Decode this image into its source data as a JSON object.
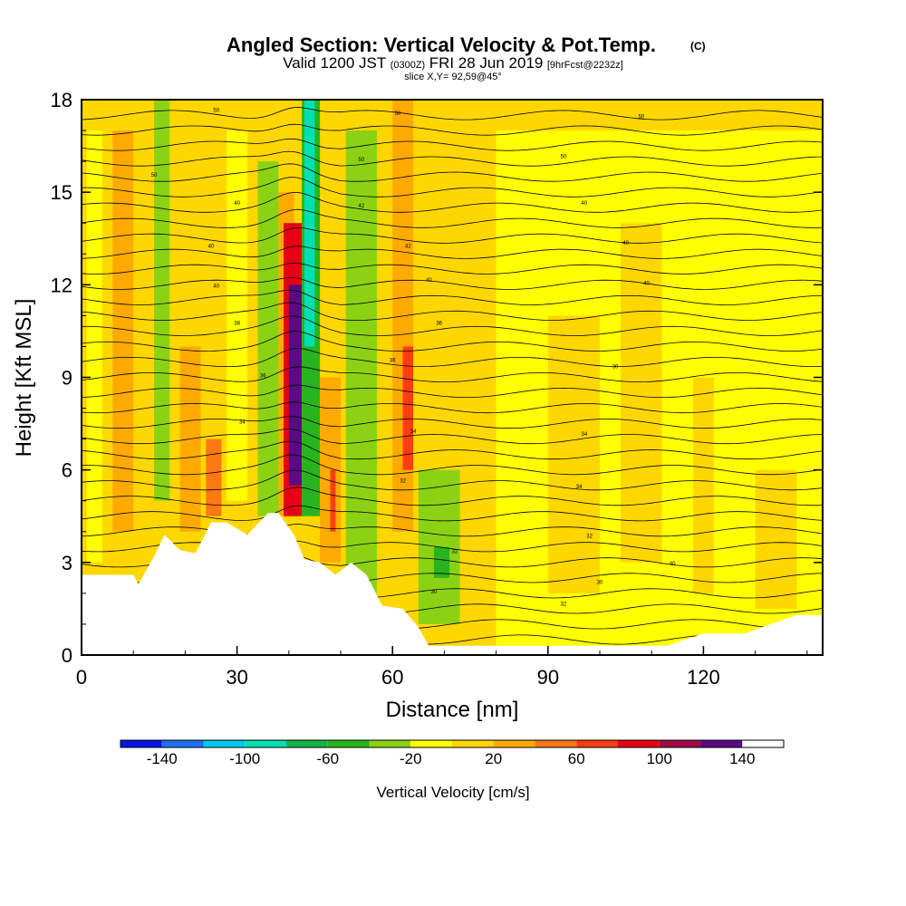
{
  "chart_data": {
    "type": "heatmap",
    "title": "Angled Section: Vertical Velocity & Pot.Temp.",
    "title_units": "(C)",
    "subtitle_valid": "Valid 1200 JST",
    "subtitle_utc": "(0300Z)",
    "subtitle_date": "FRI 28 Jun 2019",
    "subtitle_fcst": "[9hrFcst@2232z]",
    "slice_label": "slice X,Y= 92,59@45°",
    "xlabel": "Distance [nm]",
    "ylabel": "Height [Kft MSL]",
    "xlim": [
      0,
      143
    ],
    "ylim": [
      0,
      18
    ],
    "x_ticks": [
      "0",
      "30",
      "60",
      "90",
      "120"
    ],
    "y_ticks": [
      "0",
      "3",
      "6",
      "9",
      "12",
      "15",
      "18"
    ],
    "x_tick_values": [
      0,
      30,
      60,
      90,
      120
    ],
    "y_tick_values": [
      0,
      3,
      6,
      9,
      12,
      15,
      18
    ],
    "colorbar": {
      "label": "Vertical Velocity [cm/s]",
      "boundaries": [
        -160,
        -140,
        -120,
        -100,
        -80,
        -60,
        -40,
        -20,
        0,
        20,
        40,
        60,
        80,
        100,
        120,
        140,
        160
      ],
      "colors": [
        "#0a14e6",
        "#1e6ef0",
        "#00c8f0",
        "#00e0b4",
        "#14b446",
        "#28b41e",
        "#8cd214",
        "#ffff00",
        "#ffd700",
        "#ffaa00",
        "#ff7814",
        "#ff3c14",
        "#e60014",
        "#a00a46",
        "#5a0a82"
      ],
      "tick_labels": [
        "-140",
        "-100",
        "-60",
        "-20",
        "20",
        "60",
        "100",
        "140"
      ],
      "tick_values": [
        -140,
        -100,
        -60,
        -20,
        20,
        60,
        100,
        140
      ]
    },
    "terrain_kft": {
      "x": [
        0,
        10,
        11,
        14,
        16,
        19,
        22,
        25,
        28,
        32,
        36,
        38,
        41,
        43,
        46,
        49,
        52,
        55,
        58,
        62,
        65,
        67,
        70,
        80,
        90,
        100,
        113,
        120,
        128,
        133,
        138,
        143
      ],
      "y": [
        2.6,
        2.6,
        2.3,
        3.2,
        3.9,
        3.4,
        3.3,
        4.3,
        4.3,
        3.9,
        4.6,
        4.6,
        3.9,
        3.1,
        3.0,
        2.6,
        3.0,
        2.6,
        1.6,
        1.5,
        0.9,
        0.3,
        0.3,
        0.3,
        0.3,
        0.3,
        0.3,
        0.7,
        0.7,
        1.0,
        1.3,
        1.3
      ]
    },
    "velocity_cells": [
      {
        "x": [
          0,
          143
        ],
        "y": [
          0,
          18
        ],
        "value": 5
      },
      {
        "x": [
          80,
          143
        ],
        "y": [
          0,
          17
        ],
        "value": -10
      },
      {
        "x": [
          90,
          100
        ],
        "y": [
          2,
          11
        ],
        "value": 5
      },
      {
        "x": [
          104,
          112
        ],
        "y": [
          3,
          14
        ],
        "value": 5
      },
      {
        "x": [
          118,
          122
        ],
        "y": [
          2,
          9
        ],
        "value": 5
      },
      {
        "x": [
          130,
          138
        ],
        "y": [
          1.5,
          6
        ],
        "value": 5
      },
      {
        "x": [
          1,
          4
        ],
        "y": [
          3,
          17
        ],
        "value": -10
      },
      {
        "x": [
          6,
          10
        ],
        "y": [
          4,
          17
        ],
        "value": 30
      },
      {
        "x": [
          14,
          17
        ],
        "y": [
          5,
          18
        ],
        "value": -30
      },
      {
        "x": [
          19,
          23
        ],
        "y": [
          4,
          10
        ],
        "value": 30
      },
      {
        "x": [
          24,
          27
        ],
        "y": [
          4.5,
          7
        ],
        "value": 50
      },
      {
        "x": [
          28,
          32
        ],
        "y": [
          5,
          17
        ],
        "value": -10
      },
      {
        "x": [
          34,
          38
        ],
        "y": [
          4.5,
          16
        ],
        "value": -30
      },
      {
        "x": [
          38,
          41
        ],
        "y": [
          4.5,
          15
        ],
        "value": 30
      },
      {
        "x": [
          39,
          42.5
        ],
        "y": [
          4.5,
          14
        ],
        "value": 90
      },
      {
        "x": [
          40,
          42.5
        ],
        "y": [
          5.5,
          12
        ],
        "value": 130
      },
      {
        "x": [
          42.5,
          46
        ],
        "y": [
          4.5,
          18
        ],
        "value": -50
      },
      {
        "x": [
          43,
          45
        ],
        "y": [
          10,
          18
        ],
        "value": -90
      },
      {
        "x": [
          46,
          50
        ],
        "y": [
          3,
          9
        ],
        "value": 30
      },
      {
        "x": [
          48,
          49
        ],
        "y": [
          4,
          6
        ],
        "value": 70
      },
      {
        "x": [
          51,
          57
        ],
        "y": [
          2,
          17
        ],
        "value": -30
      },
      {
        "x": [
          60,
          64
        ],
        "y": [
          4,
          18
        ],
        "value": 30
      },
      {
        "x": [
          62,
          64
        ],
        "y": [
          6,
          10
        ],
        "value": 70
      },
      {
        "x": [
          65,
          73
        ],
        "y": [
          1,
          6
        ],
        "value": -30
      },
      {
        "x": [
          68,
          71
        ],
        "y": [
          2.5,
          3.5
        ],
        "value": -50
      }
    ],
    "theta_isentropes_kft": [
      0.5,
      1.0,
      1.5,
      2.0,
      2.5,
      3.0,
      3.5,
      4.0,
      4.5,
      5.0,
      5.5,
      6.0,
      6.5,
      7.0,
      7.5,
      8.0,
      8.5,
      9.0,
      9.5,
      10.0,
      10.5,
      11.0,
      11.5,
      12.0,
      12.5,
      13.0,
      13.5,
      14.0,
      14.5,
      15.0,
      15.5,
      16.0,
      16.5,
      17.0,
      17.5
    ],
    "contour_labels": [
      {
        "text": "30",
        "x": 103,
        "y": 9.3
      },
      {
        "text": "34",
        "x": 97,
        "y": 7.1
      },
      {
        "text": "34",
        "x": 96,
        "y": 5.4
      },
      {
        "text": "30",
        "x": 100,
        "y": 2.3
      },
      {
        "text": "32",
        "x": 93,
        "y": 1.6
      },
      {
        "text": "32",
        "x": 98,
        "y": 3.8
      },
      {
        "text": "40",
        "x": 114,
        "y": 2.9
      },
      {
        "text": "40",
        "x": 109,
        "y": 12.0
      },
      {
        "text": "40",
        "x": 105,
        "y": 13.3
      },
      {
        "text": "40",
        "x": 97,
        "y": 14.6
      },
      {
        "text": "50",
        "x": 93,
        "y": 16.1
      },
      {
        "text": "50",
        "x": 108,
        "y": 17.4
      },
      {
        "text": "40",
        "x": 25,
        "y": 13.2
      },
      {
        "text": "40",
        "x": 30,
        "y": 14.6
      },
      {
        "text": "40",
        "x": 26,
        "y": 11.9
      },
      {
        "text": "38",
        "x": 30,
        "y": 10.7
      },
      {
        "text": "36",
        "x": 35,
        "y": 9.0
      },
      {
        "text": "34",
        "x": 31,
        "y": 7.5
      },
      {
        "text": "50",
        "x": 26,
        "y": 17.6
      },
      {
        "text": "50",
        "x": 14,
        "y": 15.5
      },
      {
        "text": "50",
        "x": 54,
        "y": 16.0
      },
      {
        "text": "50",
        "x": 61,
        "y": 17.5
      },
      {
        "text": "42",
        "x": 54,
        "y": 14.5
      },
      {
        "text": "42",
        "x": 63,
        "y": 13.2
      },
      {
        "text": "40",
        "x": 67,
        "y": 12.1
      },
      {
        "text": "36",
        "x": 69,
        "y": 10.7
      },
      {
        "text": "36",
        "x": 60,
        "y": 9.5
      },
      {
        "text": "34",
        "x": 64,
        "y": 7.2
      },
      {
        "text": "32",
        "x": 62,
        "y": 5.6
      },
      {
        "text": "32",
        "x": 72,
        "y": 3.3
      },
      {
        "text": "30",
        "x": 68,
        "y": 2.0
      }
    ]
  }
}
